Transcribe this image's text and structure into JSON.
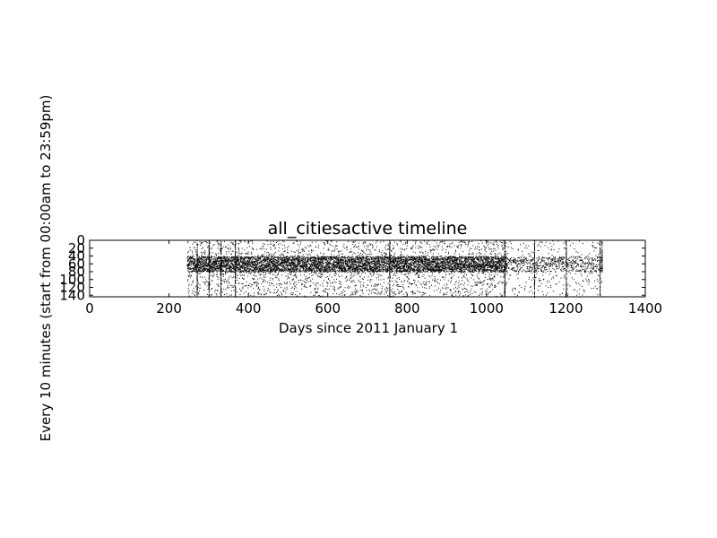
{
  "chart_data": {
    "type": "scatter",
    "title": "all_citiesactive timeline",
    "xlabel": "Days since 2011 January 1",
    "ylabel": "Every 10 minutes (start from 00:00am to 23:59pm)",
    "xlim": [
      0,
      1400
    ],
    "ylim": [
      144,
      0
    ],
    "y_inverted": true,
    "grid": false,
    "legend": "none",
    "marker_color": "#000000",
    "x_ticks": [
      0,
      200,
      400,
      600,
      800,
      1000,
      1200,
      1400
    ],
    "x_tick_labels": [
      "0",
      "200",
      "400",
      "600",
      "800",
      "1000",
      "1200",
      "1400"
    ],
    "y_ticks": [
      0,
      20,
      40,
      60,
      80,
      100,
      120,
      140
    ],
    "y_tick_labels": [
      "0",
      "20",
      "40",
      "60",
      "80",
      "100",
      "120",
      "140"
    ],
    "x_data_range": [
      245,
      1290
    ],
    "dense_band_y_range": [
      40,
      80
    ],
    "sparse_region_x_start": 1050,
    "columns": [
      {
        "x": 270,
        "y_range": [
          0,
          144
        ]
      },
      {
        "x": 300,
        "y_range": [
          0,
          144
        ]
      },
      {
        "x": 330,
        "y_range": [
          0,
          144
        ]
      },
      {
        "x": 366,
        "y_range": [
          0,
          144
        ]
      },
      {
        "x": 755,
        "y_range": [
          0,
          144
        ]
      },
      {
        "x": 1045,
        "y_range": [
          0,
          144
        ]
      },
      {
        "x": 1120,
        "y_range": [
          0,
          144
        ]
      },
      {
        "x": 1200,
        "y_range": [
          0,
          144
        ]
      },
      {
        "x": 1285,
        "y_range": [
          0,
          144
        ]
      },
      {
        "x": 1290,
        "y_range": [
          0,
          80
        ]
      }
    ]
  }
}
